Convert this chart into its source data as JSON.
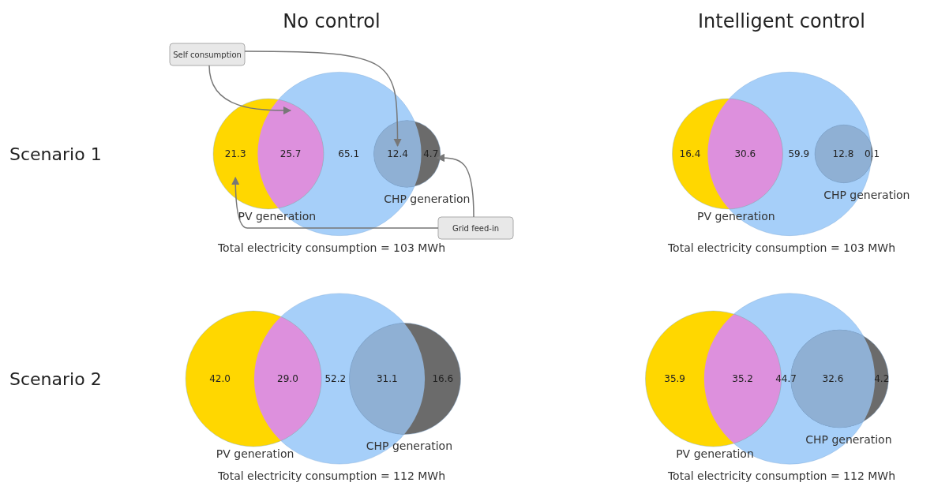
{
  "chart_data": [
    {
      "type": "other",
      "title": "No control",
      "ylabel": "Scenario 1",
      "categories": [
        null,
        null,
        null,
        null,
        null
      ],
      "values": [
        21.3,
        25.7,
        65.1,
        12.4,
        4.7
      ],
      "value_labels": [
        "21.3",
        "25.7",
        "65.1",
        "12.4",
        "4.7"
      ],
      "colors": [
        "#ffd700",
        "#dd90dd",
        "#a6cff9",
        "#8fb0d4",
        "#6b6b6b"
      ],
      "annotations": [
        "PV generation",
        "CHP generation",
        "Total electricity consumption = 103 MWh",
        "Self consumption",
        "Grid feed-in"
      ]
    },
    {
      "type": "other",
      "title": "Intelligent control",
      "categories": [
        null,
        null,
        null,
        null,
        null
      ],
      "values": [
        16.4,
        30.6,
        59.9,
        12.8,
        0.1
      ],
      "value_labels": [
        "16.4",
        "30.6",
        "59.9",
        "12.8",
        "0.1"
      ],
      "colors": [
        "#ffd700",
        "#dd90dd",
        "#a6cff9",
        "#8fb0d4",
        "#6b6b6b"
      ],
      "annotations": [
        "PV generation",
        "CHP generation",
        "Total electricity consumption = 103 MWh"
      ]
    },
    {
      "type": "other",
      "ylabel": "Scenario 2",
      "categories": [
        null,
        null,
        null,
        null,
        null
      ],
      "values": [
        42.0,
        29.0,
        52.2,
        31.1,
        16.6
      ],
      "value_labels": [
        "42.0",
        "29.0",
        "52.2",
        "31.1",
        "16.6"
      ],
      "colors": [
        "#ffd700",
        "#dd90dd",
        "#a6cff9",
        "#8fb0d4",
        "#6b6b6b"
      ],
      "annotations": [
        "PV generation",
        "CHP generation",
        "Total electricity consumption = 112 MWh"
      ]
    },
    {
      "type": "other",
      "categories": [
        null,
        null,
        null,
        null,
        null
      ],
      "values": [
        35.9,
        35.2,
        44.7,
        32.6,
        4.2
      ],
      "value_labels": [
        "35.9",
        "35.2",
        "44.7",
        "32.6",
        "4.2"
      ],
      "colors": [
        "#ffd700",
        "#dd90dd",
        "#a6cff9",
        "#8fb0d4",
        "#6b6b6b"
      ],
      "annotations": [
        "PV generation",
        "CHP generation",
        "Total electricity consumption = 112 MWh"
      ]
    }
  ]
}
